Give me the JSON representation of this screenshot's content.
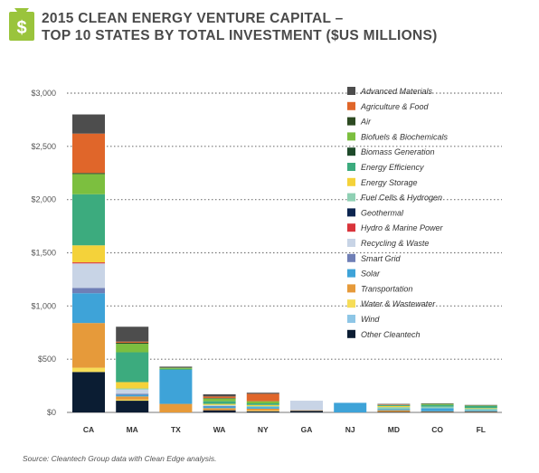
{
  "title_line1": "2015 CLEAN ENERGY VENTURE CAPITAL –",
  "title_line2": "TOP 10 STATES BY TOTAL INVESTMENT ($US MILLIONS)",
  "source": "Source: Cleantech Group data with Clean Edge analysis.",
  "icon": "money-bag-icon",
  "icon_color": "#9ac43c",
  "chart_data": {
    "type": "bar",
    "stacked": true,
    "title": "2015 CLEAN ENERGY VENTURE CAPITAL – TOP 10 STATES BY TOTAL INVESTMENT ($US MILLIONS)",
    "categories": [
      "CA",
      "MA",
      "TX",
      "WA",
      "NY",
      "GA",
      "NJ",
      "MD",
      "CO",
      "FL"
    ],
    "ylim": [
      0,
      3000
    ],
    "yticks": [
      0,
      500,
      1000,
      1500,
      2000,
      2500,
      3000
    ],
    "ytick_labels": [
      "$0",
      "$500",
      "$1,000",
      "$1,500",
      "$2,000",
      "$2,500",
      "$3,000"
    ],
    "legend_position": "right",
    "series": [
      {
        "name": "Other Cleantech",
        "color": "#0b1d33",
        "values": [
          380,
          110,
          0,
          20,
          10,
          15,
          0,
          5,
          5,
          5
        ]
      },
      {
        "name": "Wind",
        "color": "#8ec6e6",
        "values": [
          0,
          0,
          0,
          0,
          0,
          0,
          0,
          0,
          0,
          0
        ]
      },
      {
        "name": "Water & Wastewater",
        "color": "#f6dd58",
        "values": [
          40,
          10,
          0,
          0,
          5,
          0,
          0,
          0,
          0,
          0
        ]
      },
      {
        "name": "Transportation",
        "color": "#e69a3a",
        "values": [
          420,
          30,
          80,
          20,
          20,
          5,
          0,
          15,
          5,
          5
        ]
      },
      {
        "name": "Solar",
        "color": "#3ea3d8",
        "values": [
          280,
          15,
          320,
          15,
          15,
          0,
          90,
          10,
          30,
          10
        ]
      },
      {
        "name": "Smart Grid",
        "color": "#6f7fb6",
        "values": [
          50,
          10,
          0,
          5,
          0,
          0,
          0,
          0,
          0,
          0
        ]
      },
      {
        "name": "Recycling & Waste",
        "color": "#c8d4e6",
        "values": [
          230,
          40,
          0,
          5,
          0,
          90,
          0,
          0,
          0,
          0
        ]
      },
      {
        "name": "Hydro & Marine Power",
        "color": "#d9343b",
        "values": [
          10,
          0,
          0,
          0,
          0,
          0,
          0,
          0,
          0,
          0
        ]
      },
      {
        "name": "Geothermal",
        "color": "#0c2550",
        "values": [
          0,
          0,
          0,
          0,
          0,
          0,
          0,
          0,
          0,
          0
        ]
      },
      {
        "name": "Fuel Cells & Hydrogen",
        "color": "#8fd0b4",
        "values": [
          0,
          10,
          0,
          5,
          10,
          0,
          0,
          20,
          15,
          15
        ]
      },
      {
        "name": "Energy Storage",
        "color": "#f4d23a",
        "values": [
          160,
          60,
          0,
          10,
          10,
          0,
          0,
          10,
          0,
          5
        ]
      },
      {
        "name": "Energy Efficiency",
        "color": "#3cab7e",
        "values": [
          480,
          280,
          10,
          25,
          15,
          0,
          0,
          10,
          15,
          20
        ]
      },
      {
        "name": "Biomass Generation",
        "color": "#1e4a2a",
        "values": [
          0,
          0,
          0,
          0,
          0,
          0,
          0,
          0,
          0,
          0
        ]
      },
      {
        "name": "Biofuels & Biochemicals",
        "color": "#7cbf3f",
        "values": [
          190,
          80,
          10,
          25,
          20,
          0,
          0,
          0,
          10,
          5
        ]
      },
      {
        "name": "Air",
        "color": "#2d4a22",
        "values": [
          10,
          10,
          0,
          5,
          0,
          0,
          0,
          0,
          0,
          0
        ]
      },
      {
        "name": "Agriculture & Food",
        "color": "#e0662a",
        "values": [
          370,
          10,
          0,
          15,
          70,
          0,
          0,
          5,
          0,
          0
        ]
      },
      {
        "name": "Advanced Materials",
        "color": "#4d4d4d",
        "values": [
          180,
          140,
          10,
          20,
          10,
          0,
          0,
          5,
          5,
          5
        ]
      }
    ],
    "legend_order": [
      "Advanced Materials",
      "Agriculture & Food",
      "Air",
      "Biofuels & Biochemicals",
      "Biomass Generation",
      "Energy Efficiency",
      "Energy Storage",
      "Fuel Cells & Hydrogen",
      "Geothermal",
      "Hydro & Marine Power",
      "Recycling & Waste",
      "Smart Grid",
      "Solar",
      "Transportation",
      "Water & Wastewater",
      "Wind",
      "Other Cleantech"
    ]
  }
}
